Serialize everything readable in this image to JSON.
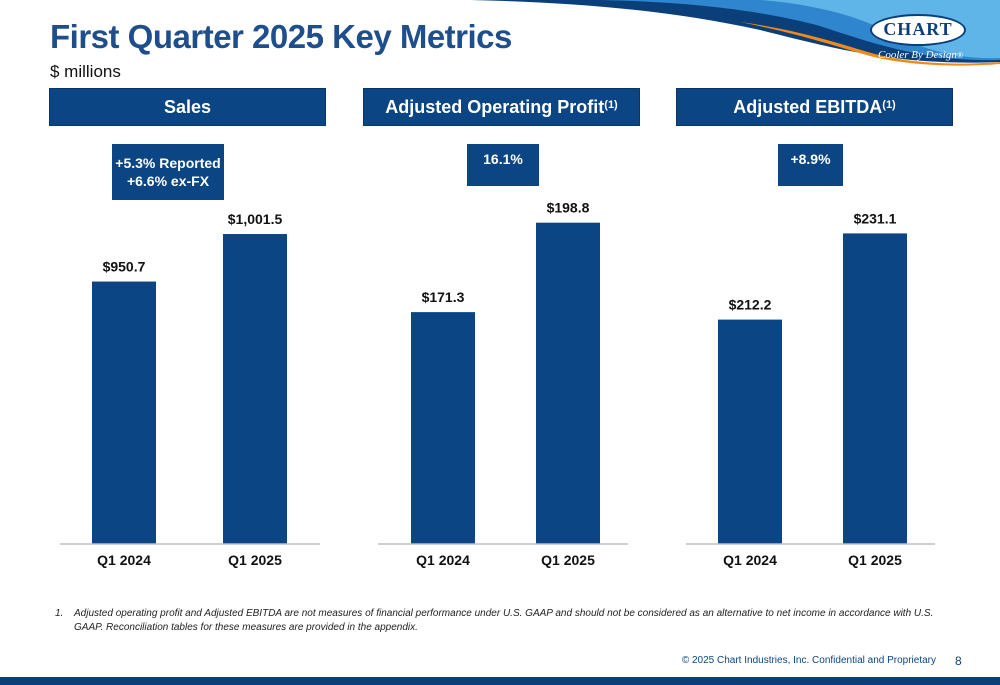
{
  "header": {
    "title": "First Quarter 2025 Key Metrics",
    "subtitle": "$ millions",
    "logo_text": "CHART",
    "logo_tagline": "Cooler By Design",
    "logo_mark": "®"
  },
  "colors": {
    "brand_blue": "#0b4583",
    "title_blue": "#1f4e8c",
    "swoosh_orange": "#f08a1c",
    "swoosh_light": "#4ba3e0"
  },
  "panels": [
    {
      "title": "Sales",
      "superscript": "",
      "callout": "+5.3% Reported\n+6.6% ex-FX"
    },
    {
      "title": "Adjusted Operating Profit",
      "superscript": "(1)",
      "callout": "16.1%"
    },
    {
      "title": "Adjusted EBITDA",
      "superscript": "(1)",
      "callout": "+8.9%"
    }
  ],
  "chart_data": [
    {
      "type": "bar",
      "title": "Sales",
      "categories": [
        "Q1 2024",
        "Q1 2025"
      ],
      "values": [
        950.7,
        1001.5
      ],
      "data_labels": [
        "$950.7",
        "$1,001.5"
      ],
      "ylim": [
        670,
        1070
      ]
    },
    {
      "type": "bar",
      "title": "Adjusted Operating Profit",
      "categories": [
        "Q1 2024",
        "Q1 2025"
      ],
      "values": [
        171.3,
        198.8
      ],
      "data_labels": [
        "$171.3",
        "$198.8"
      ],
      "ylim": [
        100,
        215
      ]
    },
    {
      "type": "bar",
      "title": "Adjusted EBITDA",
      "categories": [
        "Q1 2024",
        "Q1 2025"
      ],
      "values": [
        212.2,
        231.1
      ],
      "data_labels": [
        "$212.2",
        "$231.1"
      ],
      "ylim": [
        163,
        245
      ]
    }
  ],
  "footnote": {
    "number": "1.",
    "text": "Adjusted operating profit and Adjusted EBITDA are not measures of financial performance under U.S. GAAP and should not be considered as an alternative to net income in accordance with U.S. GAAP. Reconciliation tables for these measures are provided in the appendix."
  },
  "footer": {
    "copyright": "© 2025 Chart Industries, Inc. Confidential and Proprietary",
    "page_number": "8"
  }
}
